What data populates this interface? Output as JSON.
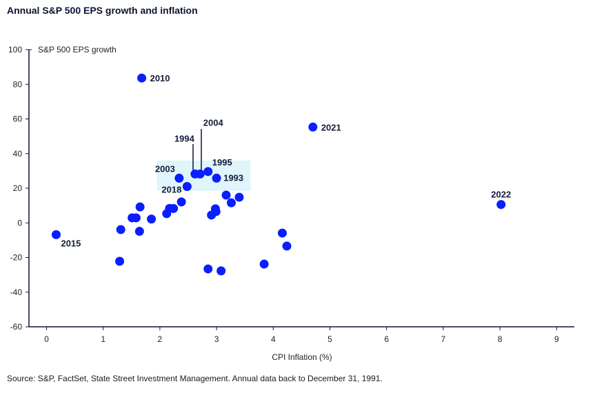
{
  "chart_data": {
    "type": "scatter",
    "title": "Annual S&P 500 EPS growth and inflation",
    "xlabel": "CPI Inflation (%)",
    "ylabel": "S&P 500 EPS growth",
    "xlim": [
      0,
      9
    ],
    "ylim": [
      -60,
      100
    ],
    "xticks": [
      "0",
      "1",
      "2",
      "3",
      "4",
      "5",
      "6",
      "7",
      "8",
      "9"
    ],
    "yticks": [
      "100",
      "80",
      "60",
      "40",
      "20",
      "0",
      "-20",
      "-40",
      "-60"
    ],
    "grid": false,
    "point_color": "#0a1eff",
    "highlight_color": "#dff4fb",
    "highlight_region": {
      "x": [
        1.95,
        3.6
      ],
      "y": [
        18.5,
        36
      ]
    },
    "points": [
      {
        "x": 1.68,
        "y": 83.6,
        "label": "2010"
      },
      {
        "x": 4.7,
        "y": 55.3,
        "label": "2021"
      },
      {
        "x": 8.02,
        "y": 10.6,
        "label": "2022"
      },
      {
        "x": 0.17,
        "y": -6.8,
        "label": "2015"
      },
      {
        "x": 2.34,
        "y": 25.8,
        "label": "2003"
      },
      {
        "x": 2.48,
        "y": 21.0,
        "label": "2018"
      },
      {
        "x": 2.62,
        "y": 28.2,
        "label": "1994"
      },
      {
        "x": 2.71,
        "y": 28.2,
        "label": "2004"
      },
      {
        "x": 2.85,
        "y": 29.6,
        "label": "1995"
      },
      {
        "x": 3.0,
        "y": 25.8,
        "label": "1993"
      },
      {
        "x": 3.17,
        "y": 16.0
      },
      {
        "x": 3.26,
        "y": 11.6
      },
      {
        "x": 3.4,
        "y": 14.8
      },
      {
        "x": 2.38,
        "y": 12.1
      },
      {
        "x": 2.24,
        "y": 8.3
      },
      {
        "x": 2.17,
        "y": 8.3
      },
      {
        "x": 2.12,
        "y": 5.3
      },
      {
        "x": 1.85,
        "y": 2.2
      },
      {
        "x": 1.65,
        "y": 9.2
      },
      {
        "x": 1.58,
        "y": 2.9
      },
      {
        "x": 1.51,
        "y": 2.9
      },
      {
        "x": 1.31,
        "y": -3.9
      },
      {
        "x": 1.64,
        "y": -4.9
      },
      {
        "x": 1.29,
        "y": -22.2
      },
      {
        "x": 2.98,
        "y": 8.1
      },
      {
        "x": 2.99,
        "y": 6.5
      },
      {
        "x": 2.91,
        "y": 4.5
      },
      {
        "x": 2.85,
        "y": -26.6
      },
      {
        "x": 3.08,
        "y": -27.7
      },
      {
        "x": 3.84,
        "y": -23.8
      },
      {
        "x": 4.16,
        "y": -5.9
      },
      {
        "x": 4.24,
        "y": -13.4
      }
    ]
  },
  "source": "Source: S&P, FactSet, State Street Investment Management. Annual data back to December 31, 1991."
}
